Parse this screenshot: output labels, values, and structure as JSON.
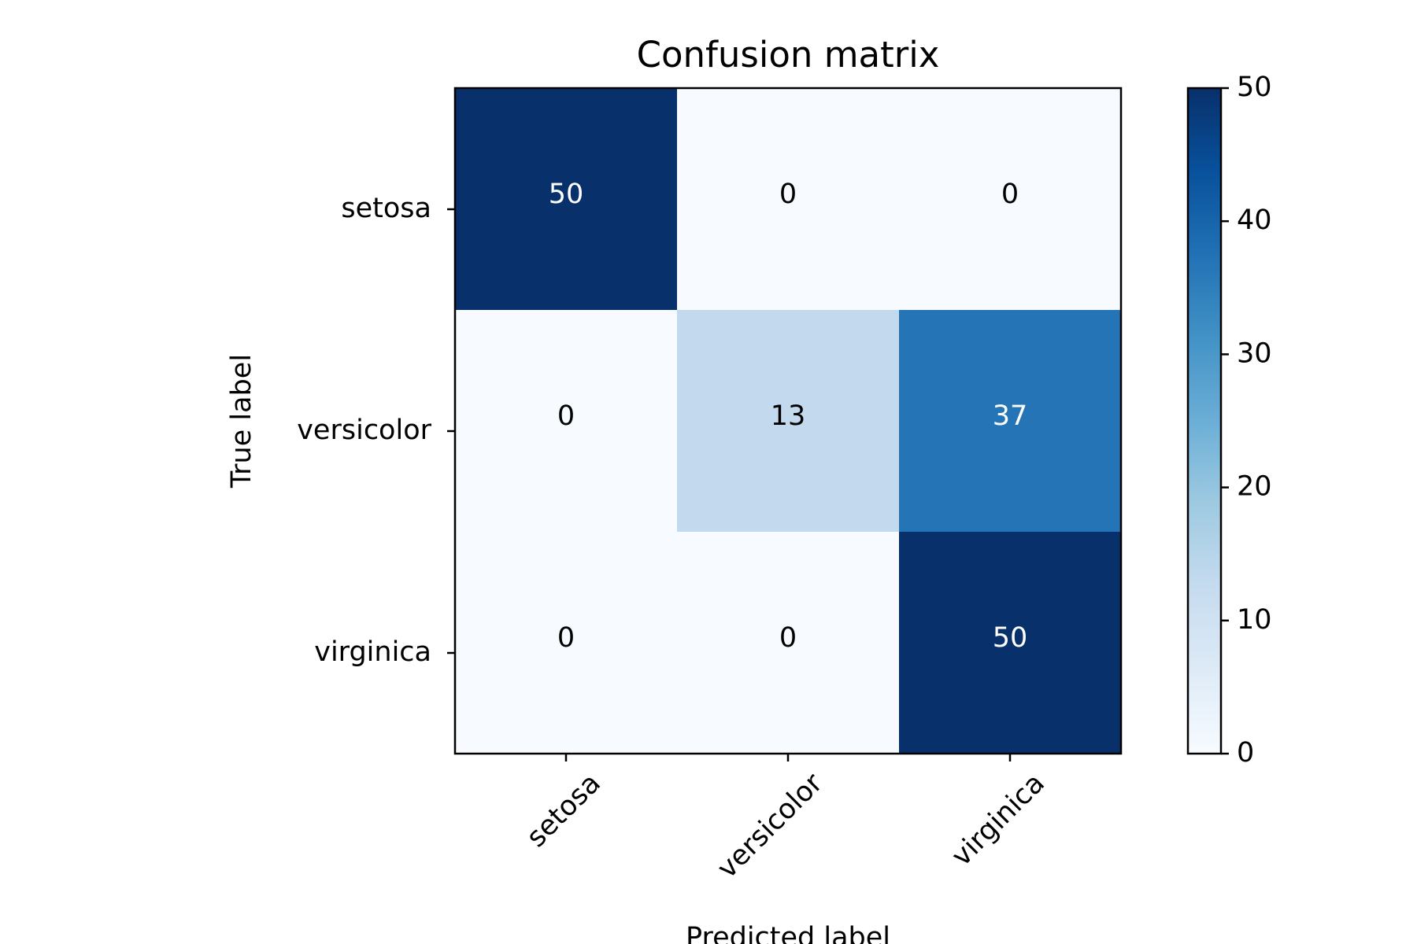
{
  "chart_data": {
    "type": "heatmap",
    "title": "Confusion matrix",
    "xlabel": "Predicted label",
    "ylabel": "True label",
    "x_categories": [
      "setosa",
      "versicolor",
      "virginica"
    ],
    "y_categories": [
      "setosa",
      "versicolor",
      "virginica"
    ],
    "values": [
      [
        50,
        0,
        0
      ],
      [
        0,
        13,
        37
      ],
      [
        0,
        0,
        50
      ]
    ],
    "colormap": "Blues",
    "colorbar": {
      "min": 0,
      "max": 50,
      "ticks": [
        "0",
        "10",
        "20",
        "30",
        "40",
        "50"
      ]
    },
    "grid": false,
    "text_threshold": 25
  }
}
